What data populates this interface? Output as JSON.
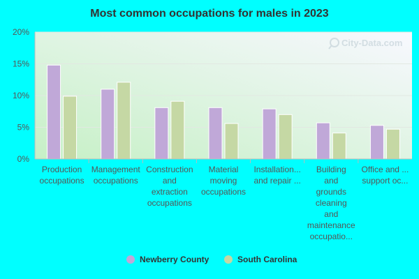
{
  "chart_data": {
    "type": "bar",
    "title": "Most common occupations for males in 2023",
    "categories": [
      [
        "Production",
        "occupations"
      ],
      [
        "Management",
        "occupations"
      ],
      [
        "Construction",
        "and",
        "extraction",
        "occupations"
      ],
      [
        "Material",
        "moving",
        "occupations"
      ],
      [
        "Installation...",
        "and repair ..."
      ],
      [
        "Building",
        "and",
        "grounds",
        "cleaning",
        "and",
        "maintenance",
        "occupatio..."
      ],
      [
        "Office and ...",
        "support oc..."
      ]
    ],
    "series": [
      {
        "name": "Newberry County",
        "color": "#c0a8d8",
        "values": [
          14.8,
          11.0,
          8.1,
          8.1,
          7.9,
          5.7,
          5.3
        ]
      },
      {
        "name": "South Carolina",
        "color": "#c5d8a4",
        "values": [
          9.9,
          12.1,
          9.1,
          5.6,
          7.0,
          4.1,
          4.7
        ]
      }
    ],
    "y_ticks": [
      "0%",
      "5%",
      "10%",
      "15%",
      "20%"
    ],
    "ylim": [
      0,
      20
    ],
    "xlabel": "",
    "ylabel": "",
    "legend_position": "bottom",
    "grid": true,
    "watermark": "City-Data.com"
  }
}
